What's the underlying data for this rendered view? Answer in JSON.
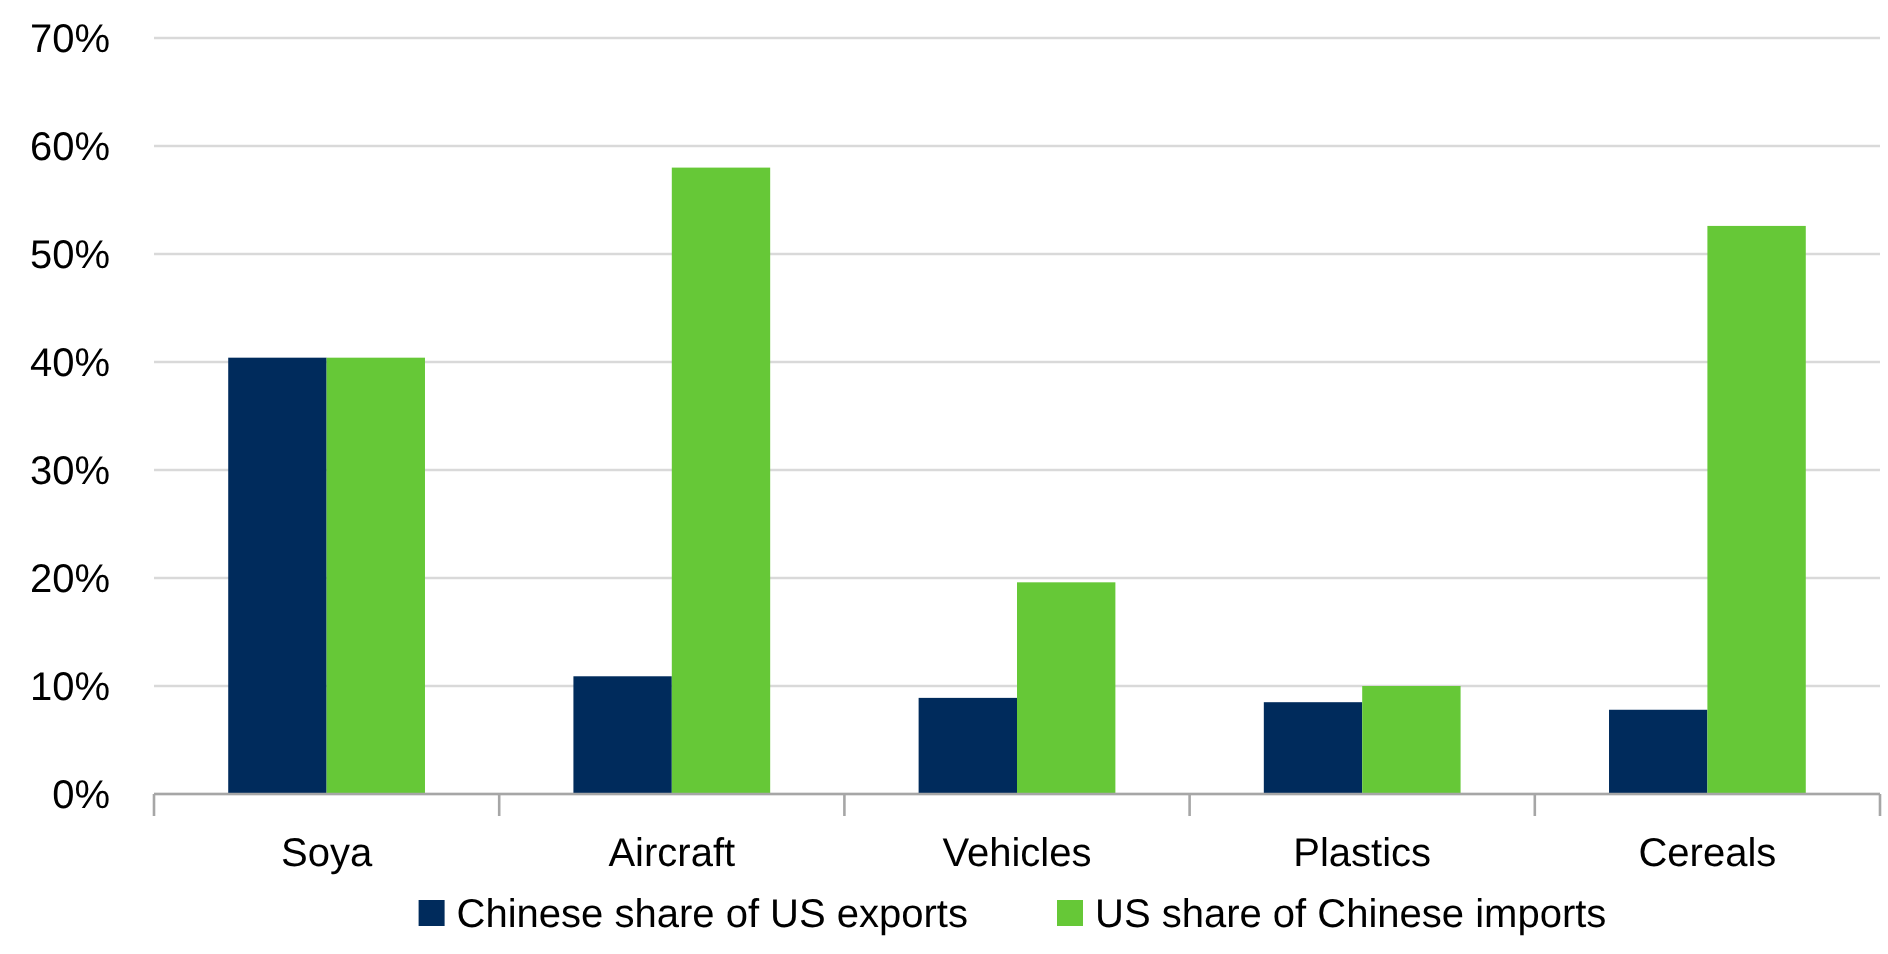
{
  "chart_data": {
    "type": "bar",
    "categories": [
      "Soya",
      "Aircraft",
      "Vehicles",
      "Plastics",
      "Cereals"
    ],
    "series": [
      {
        "name": "Chinese share of US exports",
        "color": "#002b5c",
        "values": [
          40.4,
          10.9,
          8.9,
          8.5,
          7.8
        ]
      },
      {
        "name": "US share of Chinese imports",
        "color": "#66c837",
        "values": [
          40.4,
          58,
          19.6,
          10,
          52.6
        ]
      }
    ],
    "ylim": [
      0,
      70
    ],
    "yticks": [
      {
        "value": 0,
        "label": "0%"
      },
      {
        "value": 10,
        "label": "10%"
      },
      {
        "value": 20,
        "label": "20%"
      },
      {
        "value": 30,
        "label": "30%"
      },
      {
        "value": 40,
        "label": "40%"
      },
      {
        "value": 50,
        "label": "50%"
      },
      {
        "value": 60,
        "label": "60%"
      },
      {
        "value": 70,
        "label": "70%"
      }
    ],
    "grid": "y",
    "legend": "bottom"
  }
}
